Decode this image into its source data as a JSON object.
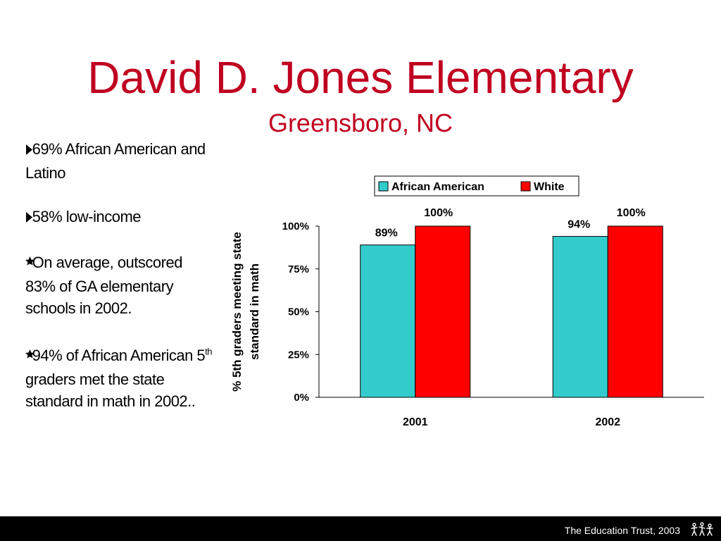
{
  "slide": {
    "title": "David D. Jones Elementary",
    "subtitle": "Greensboro, NC"
  },
  "bullets": [
    {
      "marker_icon": "triangle-right-icon",
      "text": "69% African American and Latino"
    },
    {
      "marker_icon": "triangle-right-icon",
      "text": "58% low-income"
    },
    {
      "marker_icon": "star-icon",
      "text": "On average, outscored 83% of GA elementary schools in 2002."
    },
    {
      "marker_icon": "star-icon",
      "text_before": "94% of African American 5",
      "superscript": "th",
      "text_after": " graders met the state standard in math in 2002.."
    }
  ],
  "footer": {
    "credit": "The Education Trust, 2003",
    "logo_icon": "education-trust-logo-icon"
  },
  "chart_data": {
    "type": "bar",
    "categories": [
      "2001",
      "2002"
    ],
    "series": [
      {
        "name": "African American",
        "values": [
          89,
          94
        ],
        "labels": [
          "89%",
          "94%"
        ],
        "color": "#33cccc"
      },
      {
        "name": "White",
        "values": [
          100,
          100
        ],
        "labels": [
          "100%",
          "100%"
        ],
        "color": "#ff0000"
      }
    ],
    "ylabel": "% 5th graders meeting state standard in math",
    "ylim": [
      0,
      100
    ],
    "yticks": [
      0,
      25,
      50,
      75,
      100
    ],
    "ytick_labels": [
      "0%",
      "25%",
      "50%",
      "75%",
      "100%"
    ],
    "grid": false,
    "legend": "top"
  }
}
